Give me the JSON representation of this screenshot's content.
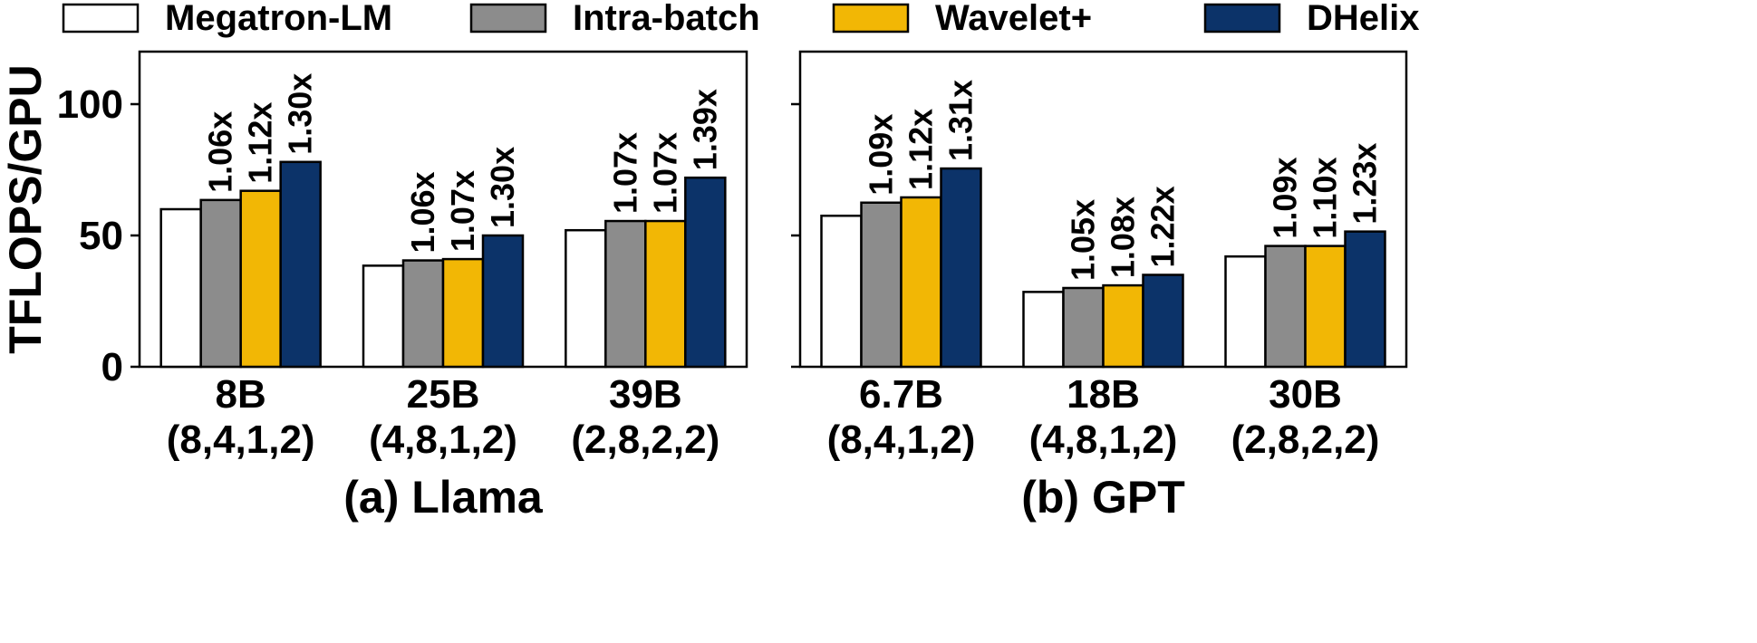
{
  "legend": [
    {
      "label": "Megatron-LM",
      "color": "#ffffff"
    },
    {
      "label": "Intra-batch",
      "color": "#8c8c8c"
    },
    {
      "label": "Wavelet+",
      "color": "#f2b705"
    },
    {
      "label": "DHelix",
      "color": "#0c3369"
    }
  ],
  "chart_data": [
    {
      "type": "bar",
      "title": "(a) Llama",
      "ylabel": "TFLOPS/GPU",
      "ylim": [
        0,
        120
      ],
      "yticks": [
        0,
        50,
        100
      ],
      "categories": [
        "8B",
        "25B",
        "39B"
      ],
      "category_configs": [
        "(8,4,1,2)",
        "(4,8,1,2)",
        "(2,8,2,2)"
      ],
      "series": [
        {
          "name": "Megatron-LM",
          "values": [
            60,
            38.5,
            52
          ],
          "labels": [
            "",
            "",
            ""
          ]
        },
        {
          "name": "Intra-batch",
          "values": [
            63.5,
            40.5,
            55.5
          ],
          "labels": [
            "1.06x",
            "1.06x",
            "1.07x"
          ]
        },
        {
          "name": "Wavelet+",
          "values": [
            67,
            41,
            55.5
          ],
          "labels": [
            "1.12x",
            "1.07x",
            "1.07x"
          ]
        },
        {
          "name": "DHelix",
          "values": [
            78,
            50,
            72
          ],
          "labels": [
            "1.30x",
            "1.30x",
            "1.39x"
          ]
        }
      ]
    },
    {
      "type": "bar",
      "title": "(b) GPT",
      "ylabel": "",
      "ylim": [
        0,
        120
      ],
      "yticks": [
        0,
        50,
        100
      ],
      "categories": [
        "6.7B",
        "18B",
        "30B"
      ],
      "category_configs": [
        "(8,4,1,2)",
        "(4,8,1,2)",
        "(2,8,2,2)"
      ],
      "series": [
        {
          "name": "Megatron-LM",
          "values": [
            57.5,
            28.5,
            42
          ],
          "labels": [
            "",
            "",
            ""
          ]
        },
        {
          "name": "Intra-batch",
          "values": [
            62.5,
            30,
            46
          ],
          "labels": [
            "1.09x",
            "1.05x",
            "1.09x"
          ]
        },
        {
          "name": "Wavelet+",
          "values": [
            64.5,
            31,
            46
          ],
          "labels": [
            "1.12x",
            "1.08x",
            "1.10x"
          ]
        },
        {
          "name": "DHelix",
          "values": [
            75.5,
            35,
            51.5
          ],
          "labels": [
            "1.31x",
            "1.22x",
            "1.23x"
          ]
        }
      ]
    }
  ]
}
